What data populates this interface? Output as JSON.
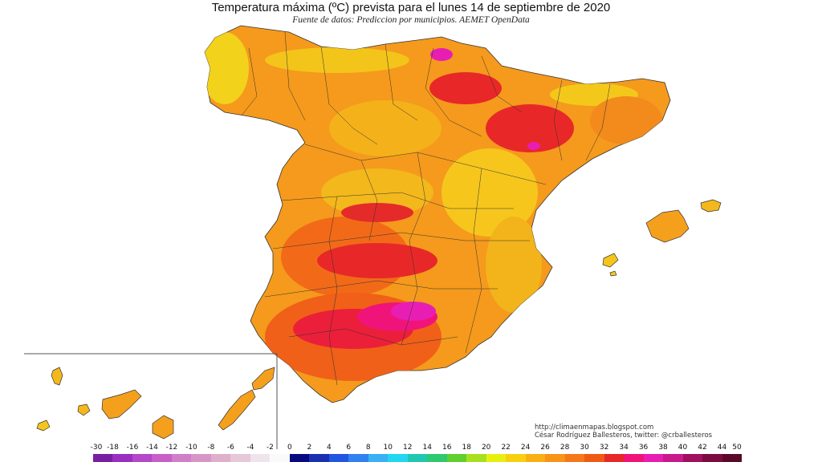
{
  "title": "Temperatura máxima (ºC) prevista para el lunes 14 de septiembre de 2020",
  "subtitle": "Fuente de datos: Prediccion por municipios. AEMET OpenData",
  "credits": {
    "url": "http://climaenmapas.blogspot.com",
    "author": "César Rodríguez Ballesteros, twitter: @crballesteros"
  },
  "legend": {
    "labels": [
      "-30",
      "-18",
      "-16",
      "-14",
      "-12",
      "-10",
      "-8",
      "-6",
      "-4",
      "-2",
      "0",
      "2",
      "4",
      "6",
      "8",
      "10",
      "12",
      "14",
      "16",
      "18",
      "20",
      "22",
      "24",
      "26",
      "28",
      "30",
      "32",
      "34",
      "36",
      "38",
      "40",
      "42",
      "44",
      "50"
    ],
    "colors": [
      "#7a1fa2",
      "#9b2fc0",
      "#b548c8",
      "#c860c8",
      "#d07fc8",
      "#d896c8",
      "#deb0cc",
      "#e6c8d8",
      "#f0e4ec",
      "#fafafa",
      "#0a0a80",
      "#1a30b0",
      "#2255e0",
      "#3380f0",
      "#3ab0f5",
      "#22d8f0",
      "#20c8b0",
      "#30c870",
      "#60d030",
      "#a8e020",
      "#e8f010",
      "#f8d010",
      "#f8b014",
      "#f89418",
      "#f5781a",
      "#f05a14",
      "#e82828",
      "#f0147a",
      "#e81eb4",
      "#c81a8a",
      "#a01060",
      "#7a0c40",
      "#5a0a28"
    ]
  },
  "map_features": {
    "region": "Peninsular Spain",
    "islands": [
      "Baleares",
      "Canarias"
    ],
    "canary_inset": true
  }
}
